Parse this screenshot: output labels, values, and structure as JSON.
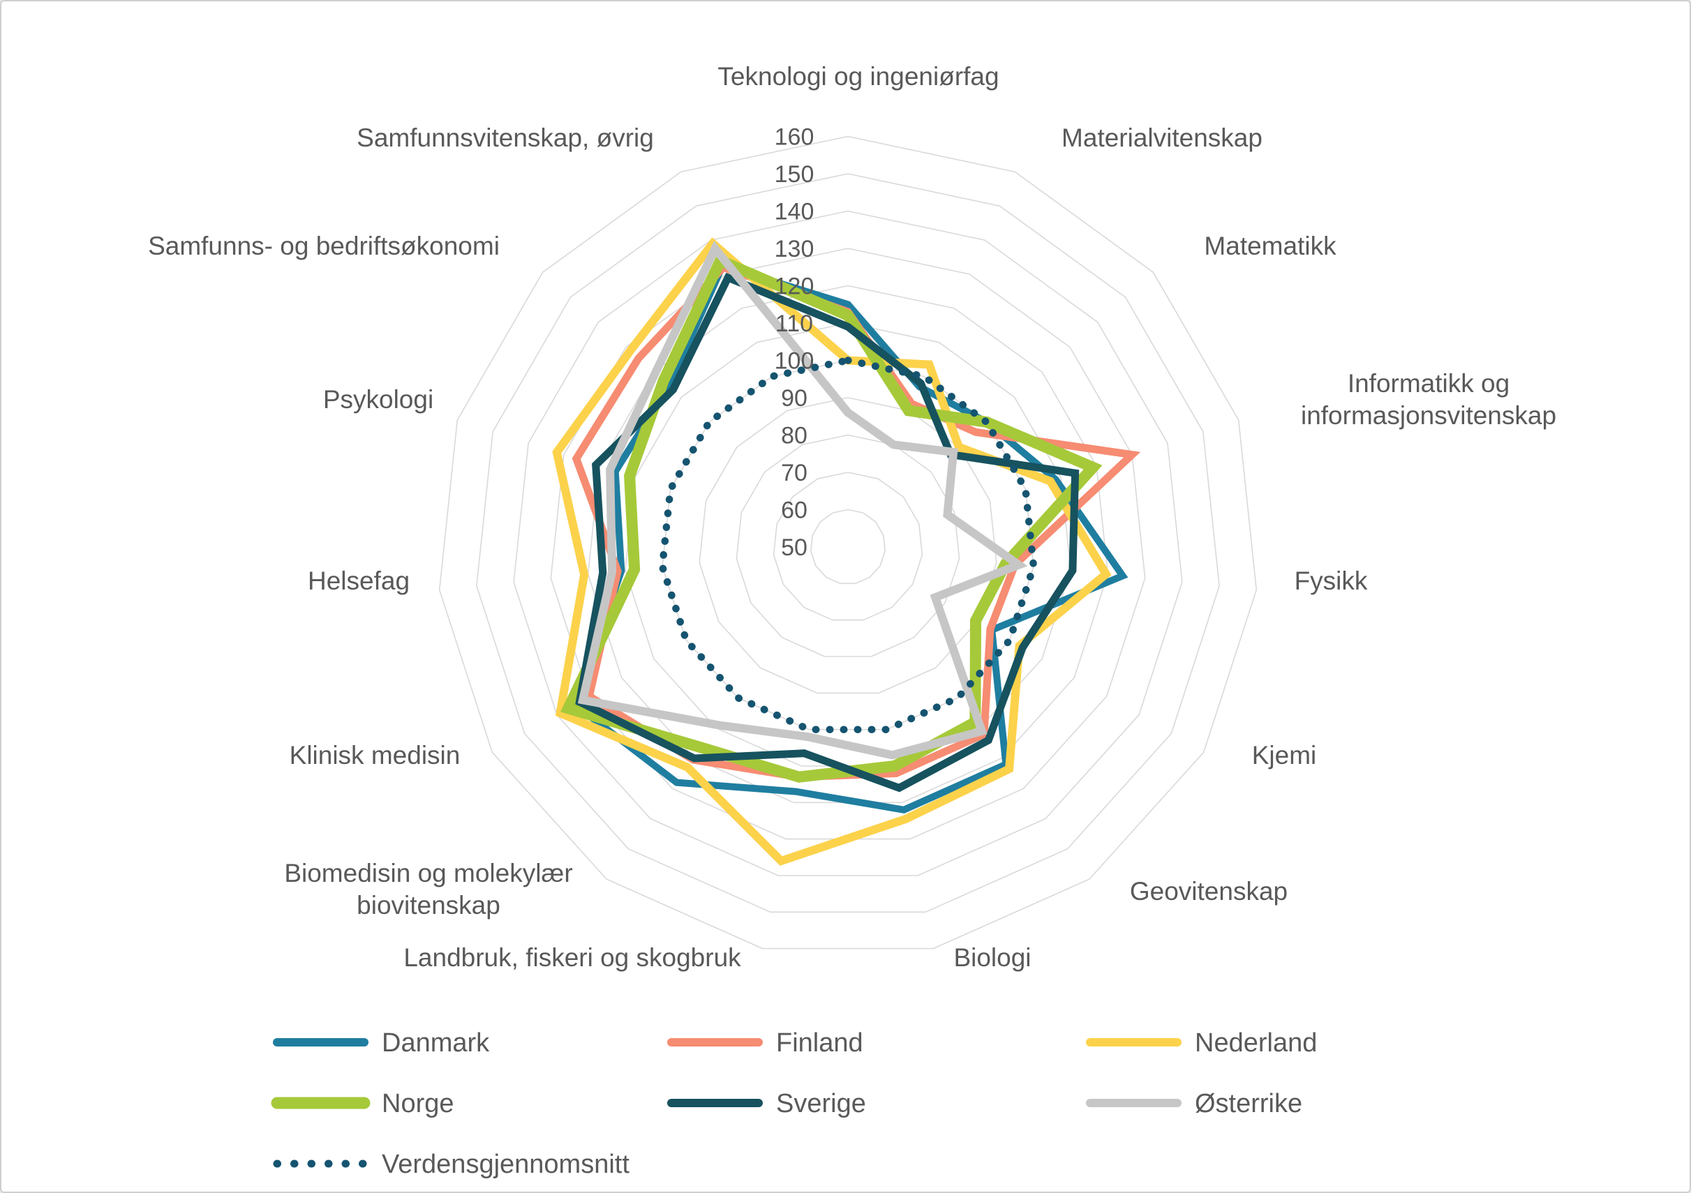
{
  "chart_data": {
    "type": "radar",
    "title": "",
    "categories": [
      "Teknologi og ingeniørfag",
      "Materialvitenskap",
      "Matematikk",
      "Informatikk og informasjonsvitenskap",
      "Fysikk",
      "Kjemi",
      "Geovitenskap",
      "Biologi",
      "Landbruk, fiskeri og skogbruk",
      "Biomedisin og molekylær biovitenskap",
      "Klinisk medisin",
      "Helsefag",
      "Psykologi",
      "Samfunns- og bedriftsøkonomi",
      "Samfunnsvitenskap, øvrig"
    ],
    "radial_axis": {
      "min": 50,
      "max": 160,
      "step": 10,
      "tick_labels": [
        "50",
        "60",
        "70",
        "80",
        "90",
        "100",
        "110",
        "120",
        "130",
        "140",
        "150",
        "160"
      ]
    },
    "grid": {
      "rings_on": true,
      "spokes_on": false,
      "ring_color": "#d9d9d9",
      "label_color": "#595959"
    },
    "legend_position": "bottom-left",
    "series": [
      {
        "name": "Danmark",
        "color": "#1f7ea0",
        "line_width": 10,
        "dotted": false,
        "values": [
          115,
          97,
          100,
          108.5,
          124,
          94.5,
          122,
          122,
          117,
          128,
          134.5,
          111,
          115.5,
          114.5,
          132.5
        ]
      },
      {
        "name": "Finland",
        "color": "#f68c72",
        "line_width": 11,
        "dotted": false,
        "values": [
          113,
          92,
          96,
          130,
          95,
          94,
          112,
          112,
          113,
          120.5,
          130,
          112,
          126.5,
          125.5,
          132
        ]
      },
      {
        "name": "Nederland",
        "color": "#fcd24b",
        "line_width": 12,
        "dotted": false,
        "values": [
          100,
          103.5,
          90,
          107,
          119.5,
          103,
          123.5,
          124.5,
          136,
          123,
          139,
          121,
          132,
          128.5,
          139
        ]
      },
      {
        "name": "Norge",
        "color": "#a6c939",
        "line_width": 16,
        "dotted": false,
        "values": [
          112,
          90,
          100,
          119,
          92.5,
          89.5,
          108,
          110,
          113,
          116.5,
          136.5,
          107.5,
          111.5,
          116.5,
          134
        ]
      },
      {
        "name": "Sverige",
        "color": "#17525f",
        "line_width": 11,
        "dotted": false,
        "values": [
          109,
          98,
          87,
          114,
          110.5,
          104,
          114,
          116,
          106.5,
          120,
          133,
          116,
          121,
          113,
          129
        ]
      },
      {
        "name": "Østerrike",
        "color": "#c6c6c6",
        "line_width": 12,
        "dotted": false,
        "values": [
          86,
          80,
          88,
          78,
          96,
          77,
          111,
          107,
          102,
          109,
          132,
          113.5,
          117,
          119.5,
          137.5
        ]
      },
      {
        "name": "Verdensgjennomsnitt",
        "color": "#155470",
        "line_width": 10.5,
        "dotted": true,
        "values": [
          100,
          100,
          100,
          100,
          100,
          100,
          100,
          100,
          100,
          100,
          100,
          100,
          100,
          100,
          100
        ]
      }
    ]
  }
}
